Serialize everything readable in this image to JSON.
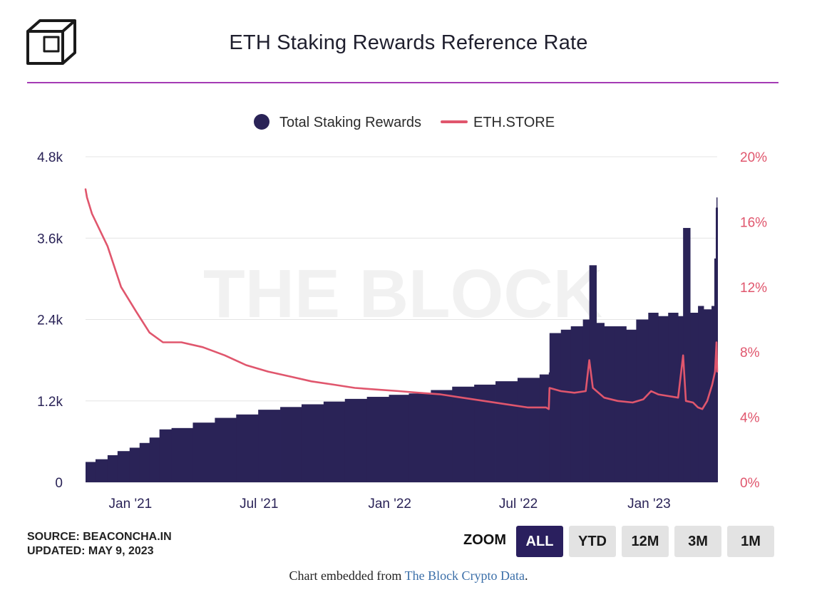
{
  "header": {
    "title": "ETH Staking Rewards Reference Rate"
  },
  "watermark": "THE BLOCK",
  "footer": {
    "source": "SOURCE: BEACONCHA.IN",
    "updated": "UPDATED: MAY 9, 2023",
    "zoom_label": "ZOOM",
    "zoom_buttons": [
      "ALL",
      "YTD",
      "12M",
      "3M",
      "1M"
    ],
    "embed_prefix": "Chart embedded from ",
    "embed_link": "The Block Crypto Data",
    "embed_suffix": "."
  },
  "colors": {
    "bars": "#2a2357",
    "line": "#e0566d",
    "accent_rule": "#a43bb4"
  },
  "chart_data": {
    "type": "bar",
    "legend": [
      "Total Staking Rewards",
      "ETH.STORE"
    ],
    "legend_position": "top-center",
    "grid": true,
    "x_tick_labels": [
      "Jan '21",
      "Jul '21",
      "Jan '22",
      "Jul '22",
      "Jan '23"
    ],
    "x_range": [
      "2020-12-01",
      "2023-05-09"
    ],
    "y_left": {
      "ticks": [
        0,
        1200,
        2400,
        3600,
        4800
      ],
      "tick_labels": [
        "0",
        "1.2k",
        "2.4k",
        "3.6k",
        "4.8k"
      ],
      "range": [
        0,
        4800
      ]
    },
    "y_right": {
      "ticks": [
        0,
        4,
        8,
        12,
        16,
        20
      ],
      "tick_labels": [
        "0%",
        "4%",
        "8%",
        "12%",
        "16%",
        "20%"
      ],
      "range": [
        0,
        20
      ]
    },
    "series": [
      {
        "name": "Total Staking Rewards",
        "type": "bar",
        "axis": "left",
        "x": [
          "2020-12-01",
          "2020-12-15",
          "2021-01-01",
          "2021-01-15",
          "2021-02-01",
          "2021-02-15",
          "2021-03-01",
          "2021-03-15",
          "2021-04-01",
          "2021-05-01",
          "2021-06-01",
          "2021-07-01",
          "2021-08-01",
          "2021-09-01",
          "2021-10-01",
          "2021-11-01",
          "2021-12-01",
          "2022-01-01",
          "2022-02-01",
          "2022-03-01",
          "2022-04-01",
          "2022-05-01",
          "2022-06-01",
          "2022-07-01",
          "2022-08-01",
          "2022-09-01",
          "2022-09-14",
          "2022-09-15",
          "2022-10-01",
          "2022-10-15",
          "2022-11-01",
          "2022-11-10",
          "2022-11-20",
          "2022-12-01",
          "2022-12-15",
          "2023-01-01",
          "2023-01-15",
          "2023-02-01",
          "2023-02-15",
          "2023-03-01",
          "2023-03-15",
          "2023-03-22",
          "2023-04-01",
          "2023-04-12",
          "2023-04-20",
          "2023-05-01",
          "2023-05-05",
          "2023-05-08",
          "2023-05-09"
        ],
        "values": [
          300,
          340,
          400,
          460,
          510,
          580,
          660,
          780,
          800,
          880,
          950,
          1000,
          1070,
          1110,
          1150,
          1190,
          1230,
          1260,
          1290,
          1310,
          1360,
          1410,
          1440,
          1490,
          1540,
          1590,
          1620,
          2200,
          2250,
          2300,
          2400,
          3200,
          2350,
          2300,
          2300,
          2250,
          2400,
          2500,
          2450,
          2500,
          2450,
          3750,
          2500,
          2600,
          2550,
          2600,
          3300,
          4200,
          4050
        ]
      },
      {
        "name": "ETH.STORE",
        "type": "line",
        "axis": "right",
        "x": [
          "2020-12-01",
          "2020-12-03",
          "2020-12-10",
          "2021-01-01",
          "2021-01-20",
          "2021-02-10",
          "2021-03-01",
          "2021-03-20",
          "2021-04-15",
          "2021-05-15",
          "2021-06-15",
          "2021-07-15",
          "2021-08-15",
          "2021-09-15",
          "2021-10-15",
          "2021-11-15",
          "2021-12-15",
          "2022-01-15",
          "2022-02-15",
          "2022-03-15",
          "2022-04-15",
          "2022-05-15",
          "2022-06-15",
          "2022-07-15",
          "2022-08-15",
          "2022-09-10",
          "2022-09-14",
          "2022-09-15",
          "2022-10-01",
          "2022-10-20",
          "2022-11-05",
          "2022-11-10",
          "2022-11-15",
          "2022-12-01",
          "2022-12-20",
          "2023-01-10",
          "2023-01-25",
          "2023-02-05",
          "2023-02-15",
          "2023-03-01",
          "2023-03-15",
          "2023-03-22",
          "2023-03-26",
          "2023-04-05",
          "2023-04-12",
          "2023-04-18",
          "2023-04-25",
          "2023-05-02",
          "2023-05-06",
          "2023-05-08",
          "2023-05-09"
        ],
        "values": [
          18.0,
          17.5,
          16.5,
          14.5,
          12.0,
          10.5,
          9.2,
          8.6,
          8.6,
          8.3,
          7.8,
          7.2,
          6.8,
          6.5,
          6.2,
          6.0,
          5.8,
          5.7,
          5.6,
          5.5,
          5.4,
          5.2,
          5.0,
          4.8,
          4.6,
          4.6,
          4.5,
          5.8,
          5.6,
          5.5,
          5.6,
          7.5,
          5.8,
          5.2,
          5.0,
          4.9,
          5.1,
          5.6,
          5.4,
          5.3,
          5.2,
          7.8,
          5.0,
          4.9,
          4.6,
          4.5,
          5.0,
          6.0,
          6.8,
          8.6,
          6.8
        ]
      }
    ]
  }
}
